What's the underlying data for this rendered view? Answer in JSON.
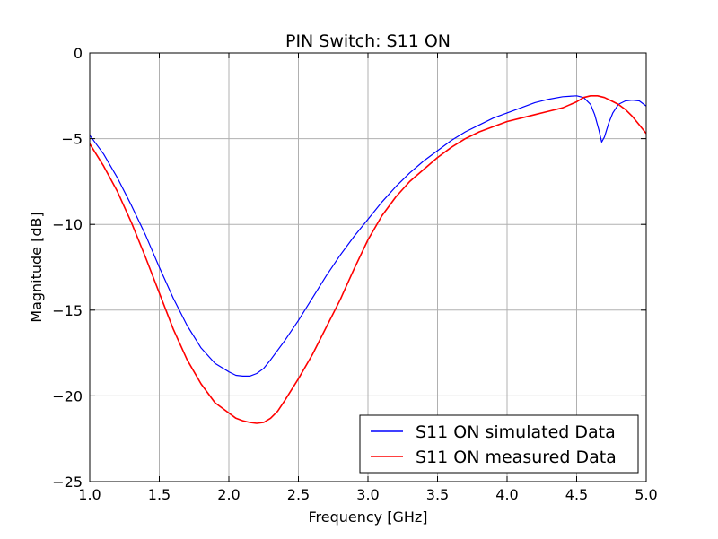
{
  "chart_data": {
    "type": "line",
    "title": "PIN Switch: S11 ON",
    "xlabel": "Frequency [GHz]",
    "ylabel": "Magnitude [dB]",
    "xlim": [
      1.0,
      5.0
    ],
    "ylim": [
      -25,
      0
    ],
    "xticks": [
      "1.0",
      "1.5",
      "2.0",
      "2.5",
      "3.0",
      "3.5",
      "4.0",
      "4.5",
      "5.0"
    ],
    "yticks": [
      "0",
      "−5",
      "−10",
      "−15",
      "−20",
      "−25"
    ],
    "grid": true,
    "legend_position": "lower-right",
    "series": [
      {
        "name": "S11 ON simulated Data",
        "color": "#0000ff",
        "x": [
          1.0,
          1.1,
          1.2,
          1.3,
          1.4,
          1.5,
          1.6,
          1.7,
          1.8,
          1.9,
          2.0,
          2.05,
          2.1,
          2.15,
          2.2,
          2.25,
          2.3,
          2.4,
          2.5,
          2.6,
          2.7,
          2.8,
          2.9,
          3.0,
          3.1,
          3.2,
          3.3,
          3.4,
          3.5,
          3.6,
          3.7,
          3.8,
          3.9,
          4.0,
          4.1,
          4.2,
          4.3,
          4.4,
          4.5,
          4.55,
          4.6,
          4.63,
          4.66,
          4.68,
          4.7,
          4.73,
          4.76,
          4.8,
          4.85,
          4.9,
          4.95,
          5.0
        ],
        "y": [
          -4.8,
          -5.9,
          -7.3,
          -8.9,
          -10.6,
          -12.5,
          -14.3,
          -15.9,
          -17.2,
          -18.1,
          -18.6,
          -18.8,
          -18.85,
          -18.85,
          -18.7,
          -18.4,
          -17.9,
          -16.8,
          -15.6,
          -14.3,
          -13.0,
          -11.8,
          -10.7,
          -9.7,
          -8.7,
          -7.8,
          -7.0,
          -6.3,
          -5.7,
          -5.1,
          -4.6,
          -4.2,
          -3.8,
          -3.5,
          -3.2,
          -2.9,
          -2.7,
          -2.55,
          -2.5,
          -2.6,
          -3.0,
          -3.6,
          -4.5,
          -5.2,
          -4.9,
          -4.1,
          -3.5,
          -3.0,
          -2.8,
          -2.75,
          -2.8,
          -3.1
        ]
      },
      {
        "name": "S11 ON measured Data",
        "color": "#ff0000",
        "x": [
          1.0,
          1.1,
          1.2,
          1.3,
          1.4,
          1.5,
          1.6,
          1.7,
          1.8,
          1.9,
          2.0,
          2.05,
          2.1,
          2.15,
          2.2,
          2.25,
          2.3,
          2.35,
          2.4,
          2.5,
          2.6,
          2.7,
          2.8,
          2.9,
          3.0,
          3.1,
          3.2,
          3.3,
          3.4,
          3.5,
          3.6,
          3.7,
          3.8,
          3.9,
          4.0,
          4.1,
          4.2,
          4.3,
          4.4,
          4.5,
          4.55,
          4.6,
          4.65,
          4.7,
          4.75,
          4.8,
          4.85,
          4.9,
          4.95,
          5.0
        ],
        "y": [
          -5.3,
          -6.6,
          -8.1,
          -9.9,
          -11.9,
          -14.0,
          -16.1,
          -17.9,
          -19.3,
          -20.4,
          -21.0,
          -21.3,
          -21.45,
          -21.55,
          -21.6,
          -21.55,
          -21.3,
          -20.9,
          -20.3,
          -19.0,
          -17.6,
          -16.0,
          -14.4,
          -12.6,
          -10.9,
          -9.5,
          -8.4,
          -7.5,
          -6.8,
          -6.1,
          -5.5,
          -5.0,
          -4.6,
          -4.3,
          -4.0,
          -3.8,
          -3.6,
          -3.4,
          -3.2,
          -2.85,
          -2.6,
          -2.5,
          -2.5,
          -2.6,
          -2.8,
          -3.0,
          -3.3,
          -3.7,
          -4.2,
          -4.7
        ]
      }
    ]
  }
}
